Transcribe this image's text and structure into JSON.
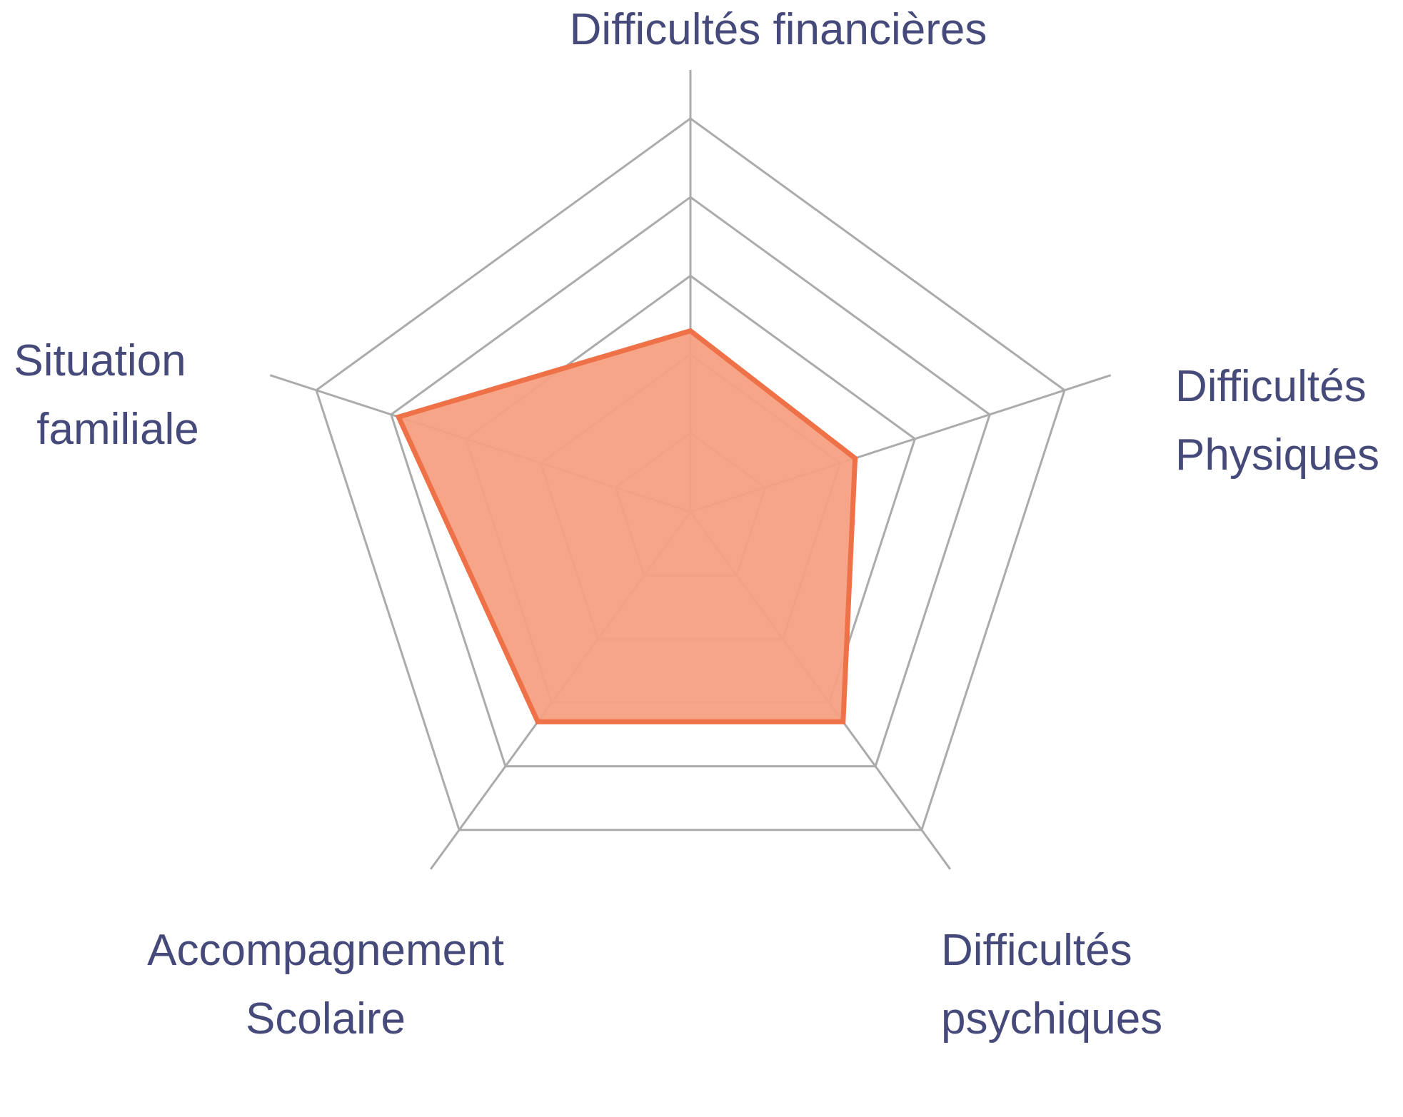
{
  "chart_data": {
    "type": "radar",
    "title": "",
    "axes": [
      {
        "lines": [
          "Difficultés financières"
        ]
      },
      {
        "lines": [
          "Difficultés",
          "Physiques"
        ]
      },
      {
        "lines": [
          "Difficultés",
          "psychiques"
        ]
      },
      {
        "lines": [
          "Accompagnement",
          "Scolaire"
        ]
      },
      {
        "lines": [
          "Situation",
          "familiale"
        ]
      }
    ],
    "rings": 5,
    "max": 5,
    "series": [
      {
        "values": [
          2.3,
          2.2,
          3.3,
          3.3,
          3.9
        ]
      }
    ],
    "grid": true,
    "legend": "none",
    "colors": {
      "grid": "#ababab",
      "fill": "#f5a083",
      "stroke": "#ef7147",
      "label": "#464a7a"
    }
  }
}
